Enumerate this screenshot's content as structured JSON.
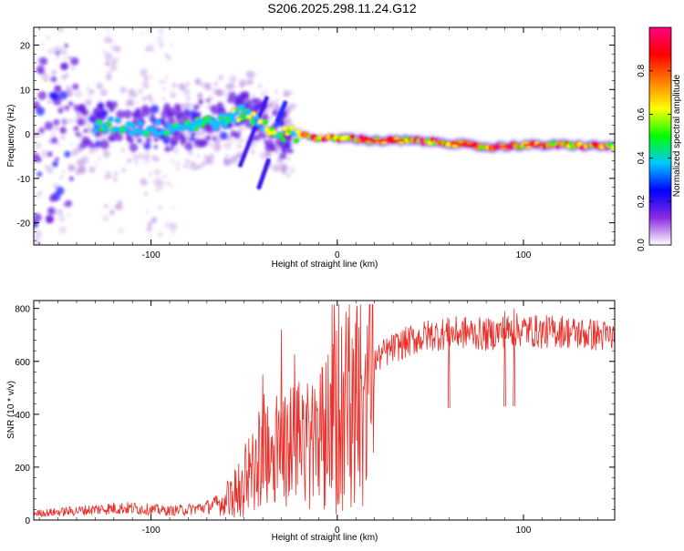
{
  "title": "S206.2025.298.11.24.G12",
  "colors": {
    "line": "#e8302a",
    "frame": "#000000"
  },
  "chart_data": [
    {
      "type": "heatmap",
      "xlabel": "Height of straight line (km)",
      "ylabel": "Frequency (Hz)",
      "xlim": [
        -163,
        149
      ],
      "ylim": [
        -25,
        24
      ],
      "xticks": [
        -100,
        0,
        100
      ],
      "yticks": [
        -20,
        -10,
        0,
        10,
        20
      ],
      "xtick_labels": [
        "-100",
        "0",
        "100"
      ],
      "ytick_labels": [
        "-20",
        "-10",
        "0",
        "10",
        "20"
      ],
      "colorbar": {
        "label": "Normalized spectral amplitude",
        "range": [
          0,
          1
        ],
        "ticks": [
          0.0,
          0.2,
          0.4,
          0.6,
          0.8
        ],
        "tick_labels": [
          "0.0",
          "0.2",
          "0.4",
          "0.6",
          "0.8"
        ],
        "colormap": [
          "#ffffff",
          "#8a2be2",
          "#0000ff",
          "#00c8ff",
          "#00ff00",
          "#ffff00",
          "#ff8000",
          "#ff0000",
          "#ff0080"
        ]
      },
      "ridge": {
        "description_points_x": [
          -160,
          -140,
          -120,
          -100,
          -80,
          -60,
          -50,
          -40,
          -30,
          -20,
          -10,
          0,
          10,
          20,
          40,
          60,
          80,
          100,
          120,
          149
        ],
        "description_points_y": [
          0,
          1,
          2,
          1,
          2,
          3,
          5,
          2,
          0,
          0,
          -1,
          -1,
          -1,
          -1.5,
          -1.5,
          -2,
          -3,
          -2.5,
          -2.5,
          -2.8
        ]
      }
    },
    {
      "type": "line",
      "xlabel": "Height of straight line (km)",
      "ylabel": "SNR (10 * v/v)",
      "xlim": [
        -163,
        149
      ],
      "ylim": [
        0,
        830
      ],
      "xticks": [
        -100,
        0,
        100
      ],
      "yticks": [
        0,
        200,
        400,
        600,
        800
      ],
      "xtick_labels": [
        "-100",
        "0",
        "100"
      ],
      "ytick_labels": [
        "0",
        "200",
        "400",
        "600",
        "800"
      ],
      "series": [
        {
          "name": "SNR",
          "x": [
            -163,
            -150,
            -140,
            -130,
            -120,
            -110,
            -100,
            -90,
            -80,
            -70,
            -60,
            -55,
            -50,
            -45,
            -40,
            -35,
            -30,
            -25,
            -20,
            -15,
            -10,
            -5,
            0,
            5,
            10,
            15,
            20,
            25,
            30,
            40,
            50,
            60,
            70,
            80,
            90,
            100,
            110,
            120,
            130,
            140,
            149
          ],
          "values": [
            25,
            30,
            35,
            40,
            45,
            45,
            40,
            35,
            40,
            50,
            70,
            110,
            160,
            200,
            230,
            260,
            290,
            300,
            320,
            330,
            360,
            390,
            430,
            460,
            500,
            540,
            600,
            630,
            650,
            680,
            700,
            705,
            710,
            700,
            715,
            720,
            710,
            715,
            705,
            700,
            690
          ],
          "spikes": [
            [
              -40,
              550
            ],
            [
              -30,
              720
            ],
            [
              -25,
              500
            ],
            [
              -8,
              560
            ],
            [
              10,
              660
            ],
            [
              60,
              760
            ],
            [
              90,
              790
            ],
            [
              95,
              800
            ]
          ]
        }
      ]
    }
  ]
}
